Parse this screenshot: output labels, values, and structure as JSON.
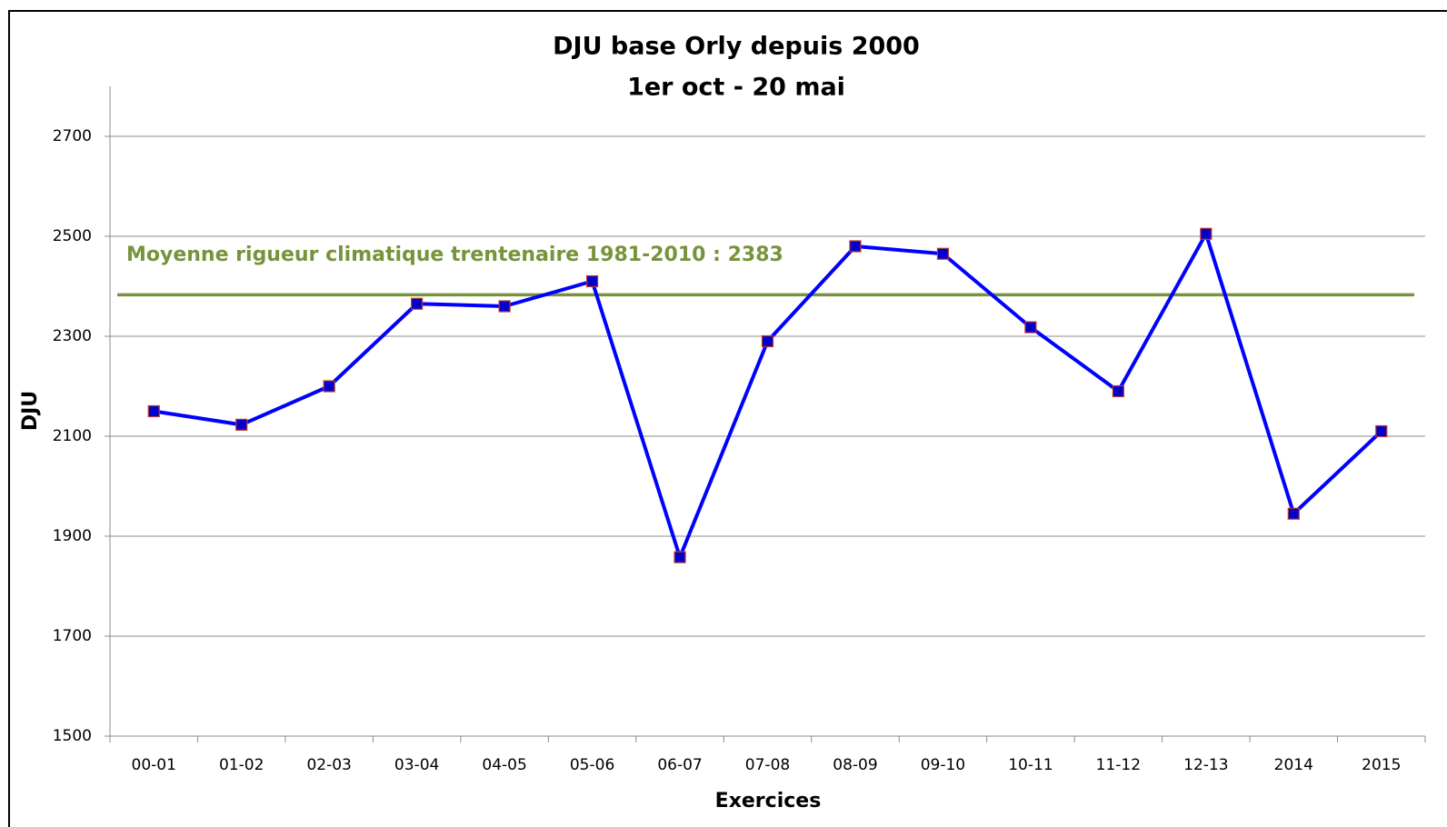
{
  "chart_data": {
    "type": "line",
    "title": "DJU base Orly depuis 2000",
    "subtitle": "1er oct - 20 mai",
    "x_label": "Exercices",
    "y_label": "DJU",
    "categories": [
      "00-01",
      "01-02",
      "02-03",
      "03-04",
      "04-05",
      "05-06",
      "06-07",
      "07-08",
      "08-09",
      "09-10",
      "10-11",
      "11-12",
      "12-13",
      "2014",
      "2015"
    ],
    "series": [
      {
        "name": "DJU",
        "color": "#0000ff",
        "marker_color": "#0000cc",
        "marker_edge": "#c0392b",
        "values": [
          2150,
          2123,
          2200,
          2365,
          2360,
          2410,
          1858,
          2290,
          2480,
          2465,
          2318,
          2190,
          2505,
          1945,
          2110
        ]
      }
    ],
    "reference_line": {
      "value": 2383,
      "label": "Moyenne rigueur climatique trentenaire 1981-2010 :  2383",
      "color": "#77933c"
    },
    "ylim": [
      1500,
      2800
    ],
    "yticks": [
      1500,
      1700,
      1900,
      2100,
      2300,
      2500,
      2700
    ],
    "grid": true
  }
}
